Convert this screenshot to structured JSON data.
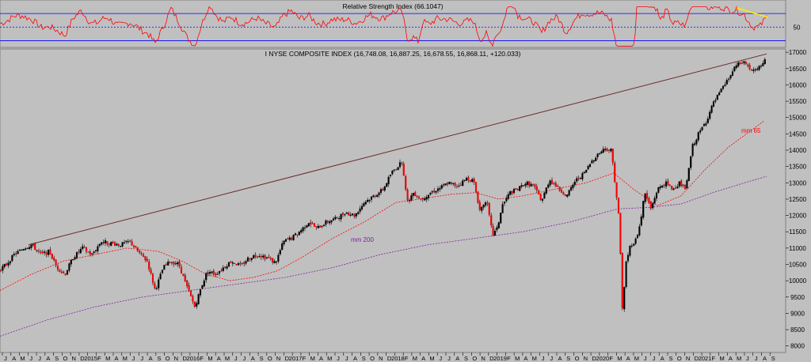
{
  "chart_data": [
    {
      "type": "line",
      "title": "Relative Strength Index (66.1047)",
      "y_ticks": [
        50
      ],
      "ylim": [
        20,
        90
      ],
      "reference_levels": [
        70,
        50,
        30
      ],
      "colors": {
        "line": "#ff0000",
        "levels": "#0000ff",
        "trend": "#ffee00"
      }
    },
    {
      "type": "candlestick",
      "title": "I NYSE COMPOSITE INDEX (16,748.08, 16,887.25, 16,678.55, 16,868.11, +120.033)",
      "ylim": [
        7800,
        17100
      ],
      "y_ticks": [
        8000,
        8500,
        9000,
        9500,
        10000,
        10500,
        11000,
        11500,
        12000,
        12500,
        13000,
        13500,
        14000,
        14500,
        15000,
        15500,
        16000,
        16500,
        17000
      ],
      "x_tick_labels": [
        "J",
        "A",
        "M",
        "J",
        "J",
        "A",
        "S",
        "O",
        "N",
        "D",
        "2015",
        "F",
        "M",
        "A",
        "M",
        "J",
        "J",
        "A",
        "S",
        "O",
        "N",
        "D",
        "2016",
        "F",
        "M",
        "A",
        "M",
        "J",
        "J",
        "A",
        "S",
        "O",
        "N",
        "D",
        "2017",
        "F",
        "M",
        "A",
        "M",
        "J",
        "J",
        "A",
        "S",
        "O",
        "N",
        "D",
        "2018",
        "F",
        "M",
        "A",
        "M",
        "J",
        "J",
        "A",
        "S",
        "O",
        "N",
        "D",
        "2019",
        "F",
        "M",
        "A",
        "M",
        "J",
        "J",
        "A",
        "S",
        "O",
        "N",
        "D",
        "2020",
        "F",
        "M",
        "A",
        "M",
        "J",
        "J",
        "A",
        "S",
        "O",
        "N",
        "D",
        "2021",
        "F",
        "M",
        "A",
        "M",
        "J",
        "J",
        "A",
        "S"
      ],
      "close_path": [
        [
          0,
          10350
        ],
        [
          8,
          10500
        ],
        [
          18,
          10800
        ],
        [
          30,
          11000
        ],
        [
          40,
          11100
        ],
        [
          52,
          10800
        ],
        [
          62,
          10900
        ],
        [
          72,
          10400
        ],
        [
          82,
          10200
        ],
        [
          92,
          10700
        ],
        [
          104,
          11000
        ],
        [
          116,
          10800
        ],
        [
          128,
          11200
        ],
        [
          140,
          11150
        ],
        [
          152,
          11100
        ],
        [
          164,
          11200
        ],
        [
          176,
          10850
        ],
        [
          186,
          10600
        ],
        [
          196,
          9700
        ],
        [
          206,
          10400
        ],
        [
          216,
          10600
        ],
        [
          226,
          10500
        ],
        [
          236,
          9800
        ],
        [
          246,
          9200
        ],
        [
          254,
          9800
        ],
        [
          262,
          10300
        ],
        [
          272,
          10200
        ],
        [
          282,
          10400
        ],
        [
          292,
          10600
        ],
        [
          304,
          10450
        ],
        [
          314,
          10700
        ],
        [
          326,
          10800
        ],
        [
          338,
          10700
        ],
        [
          348,
          10550
        ],
        [
          358,
          11200
        ],
        [
          368,
          11300
        ],
        [
          378,
          11500
        ],
        [
          390,
          11800
        ],
        [
          400,
          11600
        ],
        [
          412,
          11800
        ],
        [
          424,
          11900
        ],
        [
          436,
          12100
        ],
        [
          448,
          12000
        ],
        [
          460,
          12400
        ],
        [
          472,
          12600
        ],
        [
          484,
          12800
        ],
        [
          494,
          13300
        ],
        [
          508,
          13650
        ],
        [
          514,
          12400
        ],
        [
          522,
          12700
        ],
        [
          532,
          12500
        ],
        [
          544,
          12700
        ],
        [
          556,
          12850
        ],
        [
          566,
          13000
        ],
        [
          578,
          12900
        ],
        [
          590,
          13150
        ],
        [
          598,
          13050
        ],
        [
          606,
          12150
        ],
        [
          614,
          12500
        ],
        [
          622,
          11400
        ],
        [
          628,
          11600
        ],
        [
          634,
          12300
        ],
        [
          644,
          12700
        ],
        [
          654,
          12800
        ],
        [
          664,
          13000
        ],
        [
          674,
          12900
        ],
        [
          684,
          12450
        ],
        [
          694,
          13100
        ],
        [
          706,
          12800
        ],
        [
          716,
          12600
        ],
        [
          726,
          13050
        ],
        [
          738,
          13300
        ],
        [
          748,
          13700
        ],
        [
          756,
          13900
        ],
        [
          764,
          14050
        ],
        [
          772,
          14000
        ],
        [
          778,
          12700
        ],
        [
          782,
          11800
        ],
        [
          786,
          9000
        ],
        [
          790,
          10500
        ],
        [
          796,
          11100
        ],
        [
          802,
          11200
        ],
        [
          808,
          11700
        ],
        [
          814,
          12700
        ],
        [
          822,
          12200
        ],
        [
          830,
          12800
        ],
        [
          840,
          13000
        ],
        [
          850,
          12800
        ],
        [
          858,
          13000
        ],
        [
          866,
          12800
        ],
        [
          874,
          14100
        ],
        [
          882,
          14500
        ],
        [
          892,
          14900
        ],
        [
          900,
          15400
        ],
        [
          910,
          15800
        ],
        [
          920,
          16200
        ],
        [
          930,
          16600
        ],
        [
          940,
          16700
        ],
        [
          950,
          16400
        ],
        [
          958,
          16500
        ],
        [
          968,
          16870
        ]
      ],
      "trendline": [
        [
          36,
          11100
        ],
        [
          968,
          16950
        ]
      ],
      "series": [
        {
          "name": "mm 65",
          "color": "#ff0000",
          "points": [
            [
              0,
              9700
            ],
            [
              40,
              10200
            ],
            [
              80,
              10600
            ],
            [
              120,
              10800
            ],
            [
              160,
              11000
            ],
            [
              200,
              10900
            ],
            [
              230,
              10600
            ],
            [
              260,
              10200
            ],
            [
              290,
              10000
            ],
            [
              320,
              10100
            ],
            [
              350,
              10300
            ],
            [
              380,
              10700
            ],
            [
              420,
              11300
            ],
            [
              460,
              11800
            ],
            [
              500,
              12400
            ],
            [
              530,
              12500
            ],
            [
              570,
              12650
            ],
            [
              600,
              12700
            ],
            [
              630,
              12500
            ],
            [
              660,
              12600
            ],
            [
              700,
              12800
            ],
            [
              740,
              13000
            ],
            [
              775,
              13300
            ],
            [
              800,
              12800
            ],
            [
              830,
              12300
            ],
            [
              860,
              12600
            ],
            [
              890,
              13400
            ],
            [
              920,
              14100
            ],
            [
              965,
              14900
            ]
          ]
        },
        {
          "name": "mm 200",
          "color": "#8020a0",
          "points": [
            [
              0,
              8300
            ],
            [
              60,
              8800
            ],
            [
              120,
              9200
            ],
            [
              180,
              9500
            ],
            [
              240,
              9700
            ],
            [
              300,
              9900
            ],
            [
              360,
              10100
            ],
            [
              420,
              10400
            ],
            [
              480,
              10800
            ],
            [
              540,
              11100
            ],
            [
              600,
              11300
            ],
            [
              660,
              11500
            ],
            [
              720,
              11800
            ],
            [
              780,
              12200
            ],
            [
              820,
              12250
            ],
            [
              860,
              12350
            ],
            [
              900,
              12700
            ],
            [
              940,
              13000
            ],
            [
              968,
              13200
            ]
          ]
        }
      ]
    }
  ]
}
